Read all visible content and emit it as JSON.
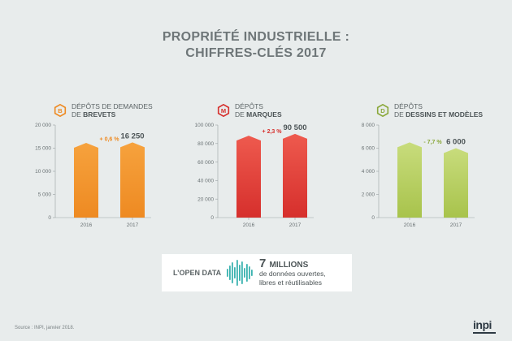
{
  "title_line1": "PROPRIÉTÉ INDUSTRIELLE :",
  "title_line2": "CHIFFRES-CLÉS 2017",
  "colors": {
    "orange_top": "#f6a23d",
    "orange_bottom": "#ee8a22",
    "red_top": "#ee5a4e",
    "red_bottom": "#d62f2c",
    "green_top": "#c8dc7c",
    "green_bottom": "#a8c34c"
  },
  "chart_data": [
    {
      "type": "bar",
      "badge": "B",
      "header_line1": "DÉPÔTS DE DEMANDES",
      "header_line2_prefix": "DE ",
      "header_line2_bold": "BREVETS",
      "categories": [
        "2016",
        "2017"
      ],
      "values": [
        16150,
        16250
      ],
      "value_label": "16 250",
      "change_label": "+ 0,6 %",
      "change_color": "#ee8a22",
      "ylim": [
        0,
        20000
      ],
      "yticks": [
        0,
        5000,
        10000,
        15000,
        20000
      ],
      "ytick_labels": [
        "0",
        "5 000",
        "10 000",
        "15 000",
        "20 000"
      ],
      "grid": false,
      "color": "orange"
    },
    {
      "type": "bar",
      "badge": "M",
      "header_line1": "DÉPÔTS",
      "header_line2_prefix": "DE ",
      "header_line2_bold": "MARQUES",
      "categories": [
        "2016",
        "2017"
      ],
      "values": [
        88450,
        90500
      ],
      "value_label": "90 500",
      "change_label": "+ 2,3 %",
      "change_color": "#d62f2c",
      "ylim": [
        0,
        100000
      ],
      "yticks": [
        0,
        20000,
        40000,
        60000,
        80000,
        100000
      ],
      "ytick_labels": [
        "0",
        "20 000",
        "40 000",
        "60 000",
        "80 000",
        "100 000"
      ],
      "grid": false,
      "color": "red"
    },
    {
      "type": "bar",
      "badge": "D",
      "header_line1": "DÉPÔTS",
      "header_line2_prefix": "DE ",
      "header_line2_bold": "DESSINS ET MODÈLES",
      "categories": [
        "2016",
        "2017"
      ],
      "values": [
        6500,
        6000
      ],
      "value_label": "6 000",
      "change_label": "- 7,7 %",
      "change_color": "#8aa83a",
      "ylim": [
        0,
        8000
      ],
      "yticks": [
        0,
        2000,
        4000,
        6000,
        8000
      ],
      "ytick_labels": [
        "0",
        "2 000",
        "4 000",
        "6 000",
        "8 000"
      ],
      "grid": false,
      "color": "green"
    }
  ],
  "open_data": {
    "label": "L’OPEN DATA",
    "number": "7",
    "unit": "MILLIONS",
    "line1": "de données ouvertes,",
    "line2": "libres et réutilisables",
    "wave_color": "#3bb3b0",
    "icon": "sound-wave-icon"
  },
  "source": "Source : INPI, janvier 2018.",
  "logo": "inpi"
}
